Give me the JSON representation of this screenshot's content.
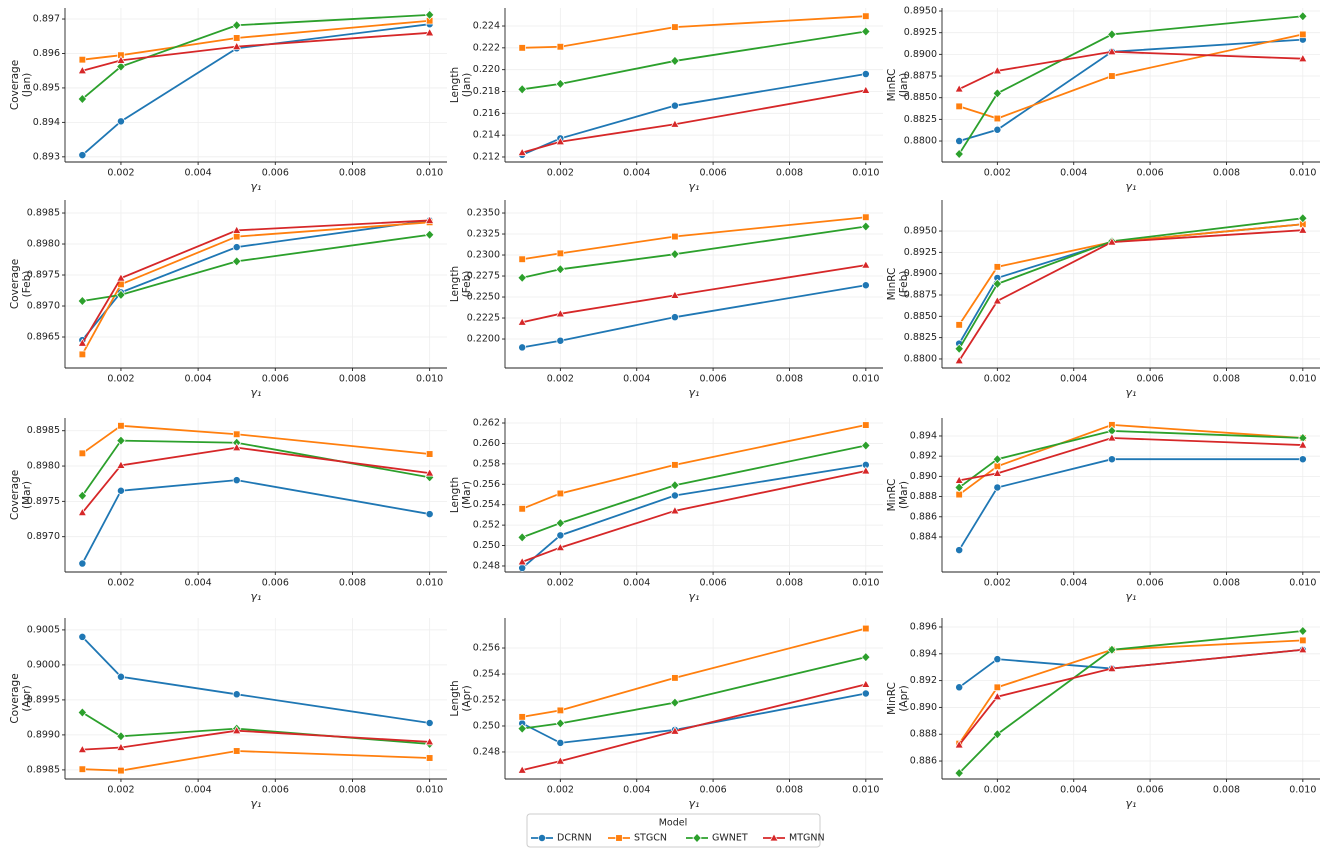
{
  "legend": {
    "title": "Model",
    "entries": [
      {
        "name": "DCRNN",
        "color": "#1f77b4",
        "marker": "circle"
      },
      {
        "name": "STGCN",
        "color": "#ff7f0e",
        "marker": "square"
      },
      {
        "name": "GWNET",
        "color": "#2ca02c",
        "marker": "diamond"
      },
      {
        "name": "MTGNN",
        "color": "#d62728",
        "marker": "triangle"
      }
    ]
  },
  "chart_data": [
    {
      "type": "line",
      "ylabel": [
        "Coverage",
        "(Jan)"
      ],
      "xlabel": "γ₁",
      "x": [
        0.001,
        0.002,
        0.005,
        0.01
      ],
      "xlim": [
        0.00055,
        0.01045
      ],
      "xticks": [
        0.002,
        0.004,
        0.006,
        0.008,
        {
          "value": 0.01,
          "label": "0.010"
        }
      ],
      "ylim": [
        0.89285,
        0.89732
      ],
      "yticks": [
        0.893,
        0.894,
        0.895,
        0.896,
        0.897
      ],
      "grid": true,
      "series": [
        {
          "values": [
            0.89305,
            0.89403,
            0.89615,
            0.89685
          ]
        },
        {
          "values": [
            0.89582,
            0.89595,
            0.89645,
            0.89695
          ]
        },
        {
          "values": [
            0.89468,
            0.89562,
            0.89682,
            0.89712
          ]
        },
        {
          "values": [
            0.8955,
            0.8958,
            0.8962,
            0.8966
          ]
        }
      ]
    },
    {
      "type": "line",
      "ylabel": [
        "Length",
        "(Jan)"
      ],
      "xlabel": "γ₁",
      "x": [
        0.001,
        0.002,
        0.005,
        0.01
      ],
      "xlim": [
        0.00055,
        0.01045
      ],
      "xticks": [
        0.002,
        0.004,
        0.006,
        0.008,
        {
          "value": 0.01,
          "label": "0.010"
        }
      ],
      "ylim": [
        0.21154,
        0.22565
      ],
      "yticks": [
        0.212,
        0.214,
        0.216,
        0.218,
        {
          "value": 0.22,
          "label": "0.220"
        },
        0.222,
        0.224
      ],
      "grid": true,
      "series": [
        {
          "values": [
            0.2122,
            0.2137,
            0.2167,
            0.2196
          ]
        },
        {
          "values": [
            0.222,
            0.2221,
            0.2239,
            0.2249
          ]
        },
        {
          "values": [
            0.2182,
            0.2187,
            0.2208,
            0.2235
          ]
        },
        {
          "values": [
            0.2124,
            0.2134,
            0.215,
            0.2181
          ]
        }
      ]
    },
    {
      "type": "line",
      "ylabel": [
        "MinRC",
        "(Jan)"
      ],
      "xlabel": "γ₁",
      "x": [
        0.001,
        0.002,
        0.005,
        0.01
      ],
      "xlim": [
        0.00055,
        0.01045
      ],
      "xticks": [
        0.002,
        0.004,
        0.006,
        0.008,
        {
          "value": 0.01,
          "label": "0.010"
        }
      ],
      "ylim": [
        0.87758,
        0.89535
      ],
      "yticks": [
        {
          "value": 0.88,
          "label": "0.8800"
        },
        0.8825,
        {
          "value": 0.885,
          "label": "0.8850"
        },
        0.8875,
        {
          "value": 0.89,
          "label": "0.8900"
        },
        0.8925,
        {
          "value": 0.895,
          "label": "0.8950"
        }
      ],
      "grid": true,
      "series": [
        {
          "values": [
            0.88,
            0.8813,
            0.8903,
            0.8917
          ]
        },
        {
          "values": [
            0.884,
            0.8826,
            0.8875,
            0.8923
          ]
        },
        {
          "values": [
            0.8785,
            0.8855,
            0.8923,
            0.8944
          ]
        },
        {
          "values": [
            0.886,
            0.8881,
            0.8903,
            0.8895
          ]
        }
      ]
    },
    {
      "type": "line",
      "ylabel": [
        "Coverage",
        "(Feb)"
      ],
      "xlabel": "γ₁",
      "x": [
        0.001,
        0.002,
        0.005,
        0.01
      ],
      "xlim": [
        0.00055,
        0.01045
      ],
      "xticks": [
        0.002,
        0.004,
        0.006,
        0.008,
        {
          "value": 0.01,
          "label": "0.010"
        }
      ],
      "ylim": [
        0.896,
        0.89871
      ],
      "yticks": [
        0.8965,
        {
          "value": 0.897,
          "label": "0.8970"
        },
        0.8975,
        {
          "value": 0.898,
          "label": "0.8980"
        },
        0.8985
      ],
      "grid": true,
      "series": [
        {
          "values": [
            0.89645,
            0.89722,
            0.89795,
            0.89838
          ]
        },
        {
          "values": [
            0.89622,
            0.89735,
            0.89812,
            0.89835
          ]
        },
        {
          "values": [
            0.89708,
            0.89718,
            0.89772,
            0.89815
          ]
        },
        {
          "values": [
            0.8964,
            0.89745,
            0.89822,
            0.89838
          ]
        }
      ]
    },
    {
      "type": "line",
      "ylabel": [
        "Length",
        "(Feb)"
      ],
      "xlabel": "γ₁",
      "x": [
        0.001,
        0.002,
        0.005,
        0.01
      ],
      "xlim": [
        0.00055,
        0.01045
      ],
      "xticks": [
        0.002,
        0.004,
        0.006,
        0.008,
        {
          "value": 0.01,
          "label": "0.010"
        }
      ],
      "ylim": [
        0.21655,
        0.23655
      ],
      "yticks": [
        {
          "value": 0.22,
          "label": "0.2200"
        },
        0.2225,
        {
          "value": 0.225,
          "label": "0.2250"
        },
        0.2275,
        {
          "value": 0.23,
          "label": "0.2300"
        },
        0.2325,
        {
          "value": 0.235,
          "label": "0.2350"
        }
      ],
      "grid": true,
      "series": [
        {
          "values": [
            0.219,
            0.2198,
            0.2226,
            0.2264
          ]
        },
        {
          "values": [
            0.2295,
            0.2302,
            0.2322,
            0.2345
          ]
        },
        {
          "values": [
            0.2273,
            0.2283,
            0.2301,
            0.2334
          ]
        },
        {
          "values": [
            0.222,
            0.223,
            0.2252,
            0.2288
          ]
        }
      ]
    },
    {
      "type": "line",
      "ylabel": [
        "MinRC",
        "(Feb)"
      ],
      "xlabel": "γ₁",
      "x": [
        0.001,
        0.002,
        0.005,
        0.01
      ],
      "xlim": [
        0.00055,
        0.01045
      ],
      "xticks": [
        0.002,
        0.004,
        0.006,
        0.008,
        {
          "value": 0.01,
          "label": "0.010"
        }
      ],
      "ylim": [
        0.87894,
        0.89864
      ],
      "yticks": [
        {
          "value": 0.88,
          "label": "0.8800"
        },
        0.8825,
        {
          "value": 0.885,
          "label": "0.8850"
        },
        0.8875,
        {
          "value": 0.89,
          "label": "0.8900"
        },
        0.8925,
        {
          "value": 0.895,
          "label": "0.8950"
        }
      ],
      "grid": true,
      "series": [
        {
          "values": [
            0.8818,
            0.8895,
            0.8937,
            0.8958
          ]
        },
        {
          "values": [
            0.884,
            0.8908,
            0.8937,
            0.8958
          ]
        },
        {
          "values": [
            0.8812,
            0.8888,
            0.8938,
            0.8965
          ]
        },
        {
          "values": [
            0.8798,
            0.8868,
            0.8937,
            0.8951
          ]
        }
      ]
    },
    {
      "type": "line",
      "ylabel": [
        "Coverage",
        "(Mar)"
      ],
      "xlabel": "γ₁",
      "x": [
        0.001,
        0.002,
        0.005,
        0.01
      ],
      "xlim": [
        0.00055,
        0.01045
      ],
      "xticks": [
        0.002,
        0.004,
        0.006,
        0.008,
        {
          "value": 0.01,
          "label": "0.010"
        }
      ],
      "ylim": [
        0.8965,
        0.89868
      ],
      "yticks": [
        {
          "value": 0.897,
          "label": "0.8970"
        },
        0.8975,
        {
          "value": 0.898,
          "label": "0.8980"
        },
        0.8985
      ],
      "grid": true,
      "series": [
        {
          "values": [
            0.89662,
            0.89765,
            0.8978,
            0.89732
          ]
        },
        {
          "values": [
            0.89818,
            0.89857,
            0.89845,
            0.89817
          ]
        },
        {
          "values": [
            0.89758,
            0.89836,
            0.89833,
            0.89784
          ]
        },
        {
          "values": [
            0.89734,
            0.89801,
            0.89826,
            0.8979
          ]
        }
      ]
    },
    {
      "type": "line",
      "ylabel": [
        "Length",
        "(Mar)"
      ],
      "xlabel": "γ₁",
      "x": [
        0.001,
        0.002,
        0.005,
        0.01
      ],
      "xlim": [
        0.00055,
        0.01045
      ],
      "xticks": [
        0.002,
        0.004,
        0.006,
        0.008,
        {
          "value": 0.01,
          "label": "0.010"
        }
      ],
      "ylim": [
        0.24741,
        0.26249
      ],
      "yticks": [
        0.248,
        {
          "value": 0.25,
          "label": "0.250"
        },
        0.252,
        0.254,
        0.256,
        0.258,
        {
          "value": 0.26,
          "label": "0.260"
        },
        0.262
      ],
      "grid": true,
      "series": [
        {
          "values": [
            0.2478,
            0.251,
            0.2549,
            0.2579
          ]
        },
        {
          "values": [
            0.2536,
            0.2551,
            0.2579,
            0.2618
          ]
        },
        {
          "values": [
            0.2508,
            0.2522,
            0.2559,
            0.2598
          ]
        },
        {
          "values": [
            0.2484,
            0.2498,
            0.2534,
            0.2573
          ]
        }
      ]
    },
    {
      "type": "line",
      "ylabel": [
        "MinRC",
        "(Mar)"
      ],
      "xlabel": "γ₁",
      "x": [
        0.001,
        0.002,
        0.005,
        0.01
      ],
      "xlim": [
        0.00055,
        0.01045
      ],
      "xticks": [
        0.002,
        0.004,
        0.006,
        0.008,
        {
          "value": 0.01,
          "label": "0.010"
        }
      ],
      "ylim": [
        0.88053,
        0.89578
      ],
      "yticks": [
        0.884,
        0.886,
        0.888,
        {
          "value": 0.89,
          "label": "0.890"
        },
        0.892,
        0.894
      ],
      "grid": true,
      "series": [
        {
          "values": [
            0.8827,
            0.8889,
            0.8917,
            0.8917
          ]
        },
        {
          "values": [
            0.8882,
            0.891,
            0.8951,
            0.8938
          ]
        },
        {
          "values": [
            0.8889,
            0.8917,
            0.8945,
            0.8938
          ]
        },
        {
          "values": [
            0.8896,
            0.8903,
            0.8938,
            0.8931
          ]
        }
      ]
    },
    {
      "type": "line",
      "ylabel": [
        "Coverage",
        "(Apr)"
      ],
      "xlabel": "γ₁",
      "x": [
        0.001,
        0.002,
        0.005,
        0.01
      ],
      "xlim": [
        0.00055,
        0.01045
      ],
      "xticks": [
        0.002,
        0.004,
        0.006,
        0.008,
        {
          "value": 0.01,
          "label": "0.010"
        }
      ],
      "ylim": [
        0.89837,
        0.90067
      ],
      "yticks": [
        0.8985,
        {
          "value": 0.899,
          "label": "0.8990"
        },
        0.8995,
        {
          "value": 0.9,
          "label": "0.9000"
        },
        0.9005
      ],
      "grid": true,
      "series": [
        {
          "values": [
            0.9004,
            0.89983,
            0.89958,
            0.89917
          ]
        },
        {
          "values": [
            0.89851,
            0.89849,
            0.89877,
            0.89867
          ]
        },
        {
          "values": [
            0.89932,
            0.89898,
            0.89909,
            0.89887
          ]
        },
        {
          "values": [
            0.89879,
            0.89882,
            0.89906,
            0.8989
          ]
        }
      ]
    },
    {
      "type": "line",
      "ylabel": [
        "Length",
        "(Apr)"
      ],
      "xlabel": "γ₁",
      "x": [
        0.001,
        0.002,
        0.005,
        0.01
      ],
      "xlim": [
        0.00055,
        0.01045
      ],
      "xticks": [
        0.002,
        0.004,
        0.006,
        0.008,
        {
          "value": 0.01,
          "label": "0.010"
        }
      ],
      "ylim": [
        0.24592,
        0.25831
      ],
      "yticks": [
        0.248,
        {
          "value": 0.25,
          "label": "0.250"
        },
        0.252,
        0.254,
        0.256
      ],
      "grid": true,
      "series": [
        {
          "values": [
            0.2502,
            0.2487,
            0.2497,
            0.2525
          ]
        },
        {
          "values": [
            0.2507,
            0.2512,
            0.2537,
            0.2575
          ]
        },
        {
          "values": [
            0.2498,
            0.2502,
            0.2518,
            0.2553
          ]
        },
        {
          "values": [
            0.2466,
            0.2473,
            0.2496,
            0.2532
          ]
        }
      ]
    },
    {
      "type": "line",
      "ylabel": [
        "MinRC",
        "(Apr)"
      ],
      "xlabel": "γ₁",
      "x": [
        0.001,
        0.002,
        0.005,
        0.01
      ],
      "xlim": [
        0.00055,
        0.01045
      ],
      "xticks": [
        0.002,
        0.004,
        0.006,
        0.008,
        {
          "value": 0.01,
          "label": "0.010"
        }
      ],
      "ylim": [
        0.88466,
        0.89667
      ],
      "yticks": [
        0.886,
        0.888,
        {
          "value": 0.89,
          "label": "0.890"
        },
        0.892,
        0.894,
        0.896
      ],
      "grid": true,
      "series": [
        {
          "values": [
            0.8915,
            0.8936,
            0.8929,
            0.8943
          ]
        },
        {
          "values": [
            0.8873,
            0.8915,
            0.8943,
            0.895
          ]
        },
        {
          "values": [
            0.8851,
            0.888,
            0.8943,
            0.8957
          ]
        },
        {
          "values": [
            0.8872,
            0.8908,
            0.8929,
            0.8943
          ]
        }
      ]
    }
  ]
}
